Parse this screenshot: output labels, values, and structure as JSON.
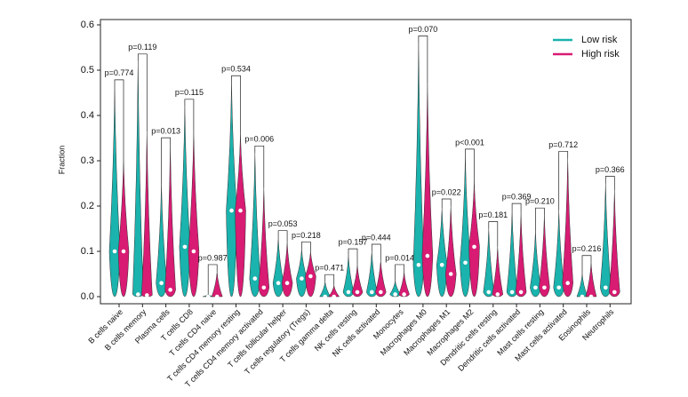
{
  "chart_data": {
    "type": "violin",
    "ylabel": "Fraction",
    "ylim": [
      0,
      0.6
    ],
    "yticks": [
      {
        "value": 0,
        "label": "0.0"
      },
      0.1,
      0.2,
      0.3,
      0.4,
      0.5,
      0.6
    ],
    "legend": "top-right",
    "categories": [
      "B cells naive",
      "B cells memory",
      "Plasma cells",
      "T cells CD8",
      "T cells CD4 naive",
      "T cells CD4 memory resting",
      "T cells CD4 memory activated",
      "T cells follicular helper",
      "T cells regulatory (Tregs)",
      "T cells gamma delta",
      "NK cells resting",
      "NK cells activated",
      "Monocytes",
      "Macrophages M0",
      "Macrophages M1",
      "Macrophages M2",
      "Dendritic cells resting",
      "Dendritic cells activated",
      "Mast cells resting",
      "Mast cells activated",
      "Eosinophils",
      "Neutrophils"
    ],
    "p_values": [
      "p=0.774",
      "p=0.119",
      "p=0.013",
      "p=0.115",
      "p=0.987",
      "p=0.534",
      "p=0.006",
      "p=0.053",
      "p=0.218",
      "p=0.471",
      "p=0.157",
      "p=0.444",
      "p=0.014",
      "p=0.070",
      "p=0.022",
      "p<0.001",
      "p=0.181",
      "p=0.369",
      "p=0.210",
      "p=0.712",
      "p=0.216",
      "p=0.366"
    ],
    "series": [
      {
        "name": "Low risk",
        "color": "#1ab3ae",
        "max": [
          0.463,
          0.52,
          0.25,
          0.42,
          0.005,
          0.472,
          0.317,
          0.13,
          0.105,
          0.033,
          0.09,
          0.1,
          0.035,
          0.56,
          0.195,
          0.31,
          0.15,
          0.19,
          0.145,
          0.19,
          0.05,
          0.25
        ],
        "median": [
          0.1,
          0.005,
          0.03,
          0.11,
          0,
          0.19,
          0.04,
          0.03,
          0.04,
          0,
          0.01,
          0.01,
          0.005,
          0.07,
          0.07,
          0.075,
          0.01,
          0.01,
          0.02,
          0.02,
          0,
          0.02
        ]
      },
      {
        "name": "High risk",
        "color": "#d81b73",
        "max": [
          0.304,
          0.365,
          0.335,
          0.365,
          0.055,
          0.36,
          0.24,
          0.12,
          0.1,
          0.025,
          0.07,
          0.08,
          0.055,
          0.47,
          0.2,
          0.255,
          0.11,
          0.185,
          0.18,
          0.305,
          0.075,
          0.235
        ],
        "median": [
          0.1,
          0.003,
          0.015,
          0.1,
          0,
          0.19,
          0.02,
          0.03,
          0.045,
          0,
          0.01,
          0.01,
          0.005,
          0.09,
          0.05,
          0.11,
          0.005,
          0.01,
          0.02,
          0.03,
          0,
          0.01
        ]
      }
    ]
  }
}
